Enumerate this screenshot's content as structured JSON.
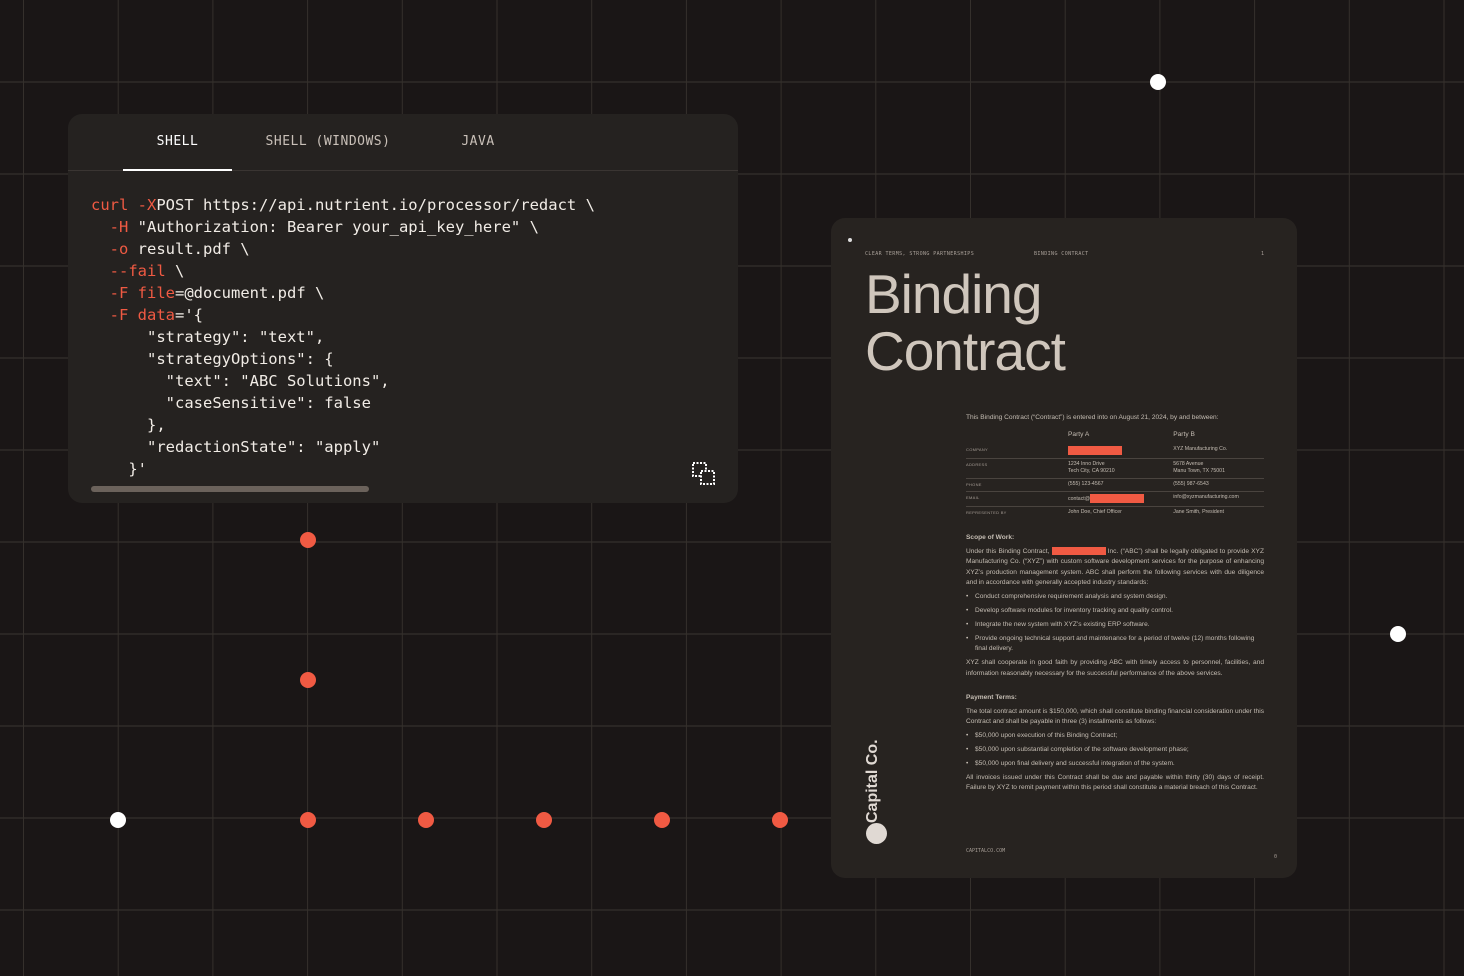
{
  "colors": {
    "background": "#1a1616",
    "panel": "#252220",
    "accent": "#f05a43",
    "grid": "#35302c"
  },
  "code_panel": {
    "tabs": [
      {
        "label": "SHELL",
        "active": true
      },
      {
        "label": "SHELL (WINDOWS)",
        "active": false
      },
      {
        "label": "JAVA",
        "active": false
      }
    ],
    "copy_icon": "copy-icon",
    "lines": [
      [
        [
          "r",
          "curl"
        ],
        [
          "r",
          " -X"
        ],
        [
          "",
          "POST https://api.nutrient.io/processor/redact \\"
        ]
      ],
      [
        [
          "r",
          "  -H"
        ],
        [
          "",
          " \"Authorization: Bearer your_api_key_here\" \\"
        ]
      ],
      [
        [
          "r",
          "  -o"
        ],
        [
          "",
          " result.pdf \\"
        ]
      ],
      [
        [
          "r",
          "  --fail"
        ],
        [
          "",
          " \\"
        ]
      ],
      [
        [
          "r",
          "  -F"
        ],
        [
          "r",
          " file"
        ],
        [
          "",
          "=@document.pdf \\"
        ]
      ],
      [
        [
          "r",
          "  -F"
        ],
        [
          "r",
          " data"
        ],
        [
          "",
          "='{"
        ]
      ],
      [
        [
          "",
          "      \"strategy\": \"text\","
        ]
      ],
      [
        [
          "",
          "      \"strategyOptions\": {"
        ]
      ],
      [
        [
          "",
          "        \"text\": \"ABC Solutions\","
        ]
      ],
      [
        [
          "",
          "        \"caseSensitive\": false"
        ]
      ],
      [
        [
          "",
          "      },"
        ]
      ],
      [
        [
          "",
          "      \"redactionState\": \"apply\""
        ]
      ],
      [
        [
          "",
          "    }'"
        ]
      ]
    ]
  },
  "document": {
    "header_left": "CLEAR TERMS, STRONG PARTNERSHIPS",
    "header_center": "BINDING CONTRACT",
    "page_number": "1",
    "title_line1": "Binding",
    "title_line2": "Contract",
    "intro": "This Binding Contract (“Contract”) is entered into on August 21, 2024, by and between:",
    "party_a": "Party A",
    "party_b": "Party B",
    "rows": {
      "company": {
        "label": "COMPANY",
        "b": "XYZ Manufacturing Co."
      },
      "address": {
        "label": "ADDRESS",
        "a1": "1234 Inno Drive",
        "a2": "Tech City, CA 90210",
        "b1": "5678 Avenue",
        "b2": "Manu Town, TX 75001"
      },
      "phone": {
        "label": "PHONE",
        "a": "(555) 123-4567",
        "b": "(555) 987-6543"
      },
      "email": {
        "label": "EMAIL",
        "a": "contact@",
        "b": "info@xyzmanufacturing.com"
      },
      "rep": {
        "label": "REPRESENTED BY",
        "a": "John Doe, Chief Officer",
        "b": "Jane Smith, President"
      }
    },
    "scope_heading": "Scope of Work:",
    "scope_pre": "Under this Binding Contract,",
    "scope_post": "Inc. (“ABC”) shall be legally obligated to provide XYZ Manufacturing Co. (“XYZ”) with custom software development services for the purpose of enhancing XYZ’s production management system. ABC shall perform the following services with due diligence and in accordance with generally accepted industry standards:",
    "scope_items": [
      "Conduct comprehensive requirement analysis and system design.",
      "Develop software modules for inventory tracking and quality control.",
      "Integrate the new system with XYZ’s existing ERP software.",
      "Provide ongoing technical support and maintenance for a period of twelve (12) months following final delivery."
    ],
    "scope_after": "XYZ shall cooperate in good faith by providing ABC with timely access to personnel, facilities, and information reasonably necessary for the successful performance of the above services.",
    "payment_heading": "Payment Terms:",
    "payment_intro": "The total contract amount is $150,000, which shall constitute binding financial consideration under this Contract and shall be payable in three (3) installments as follows:",
    "payment_items": [
      "$50,000 upon execution of this Binding Contract;",
      "$50,000 upon substantial completion of the software development phase;",
      "$50,000 upon final delivery and successful integration of the system."
    ],
    "payment_after": "All invoices issued under this Contract shall be due and payable within thirty (30) days of receipt. Failure by XYZ to remit payment within this period shall constitute a material breach of this Contract.",
    "footer": "CAPITALCO.COM",
    "footer_page": "0",
    "brand": "Capital Co."
  }
}
